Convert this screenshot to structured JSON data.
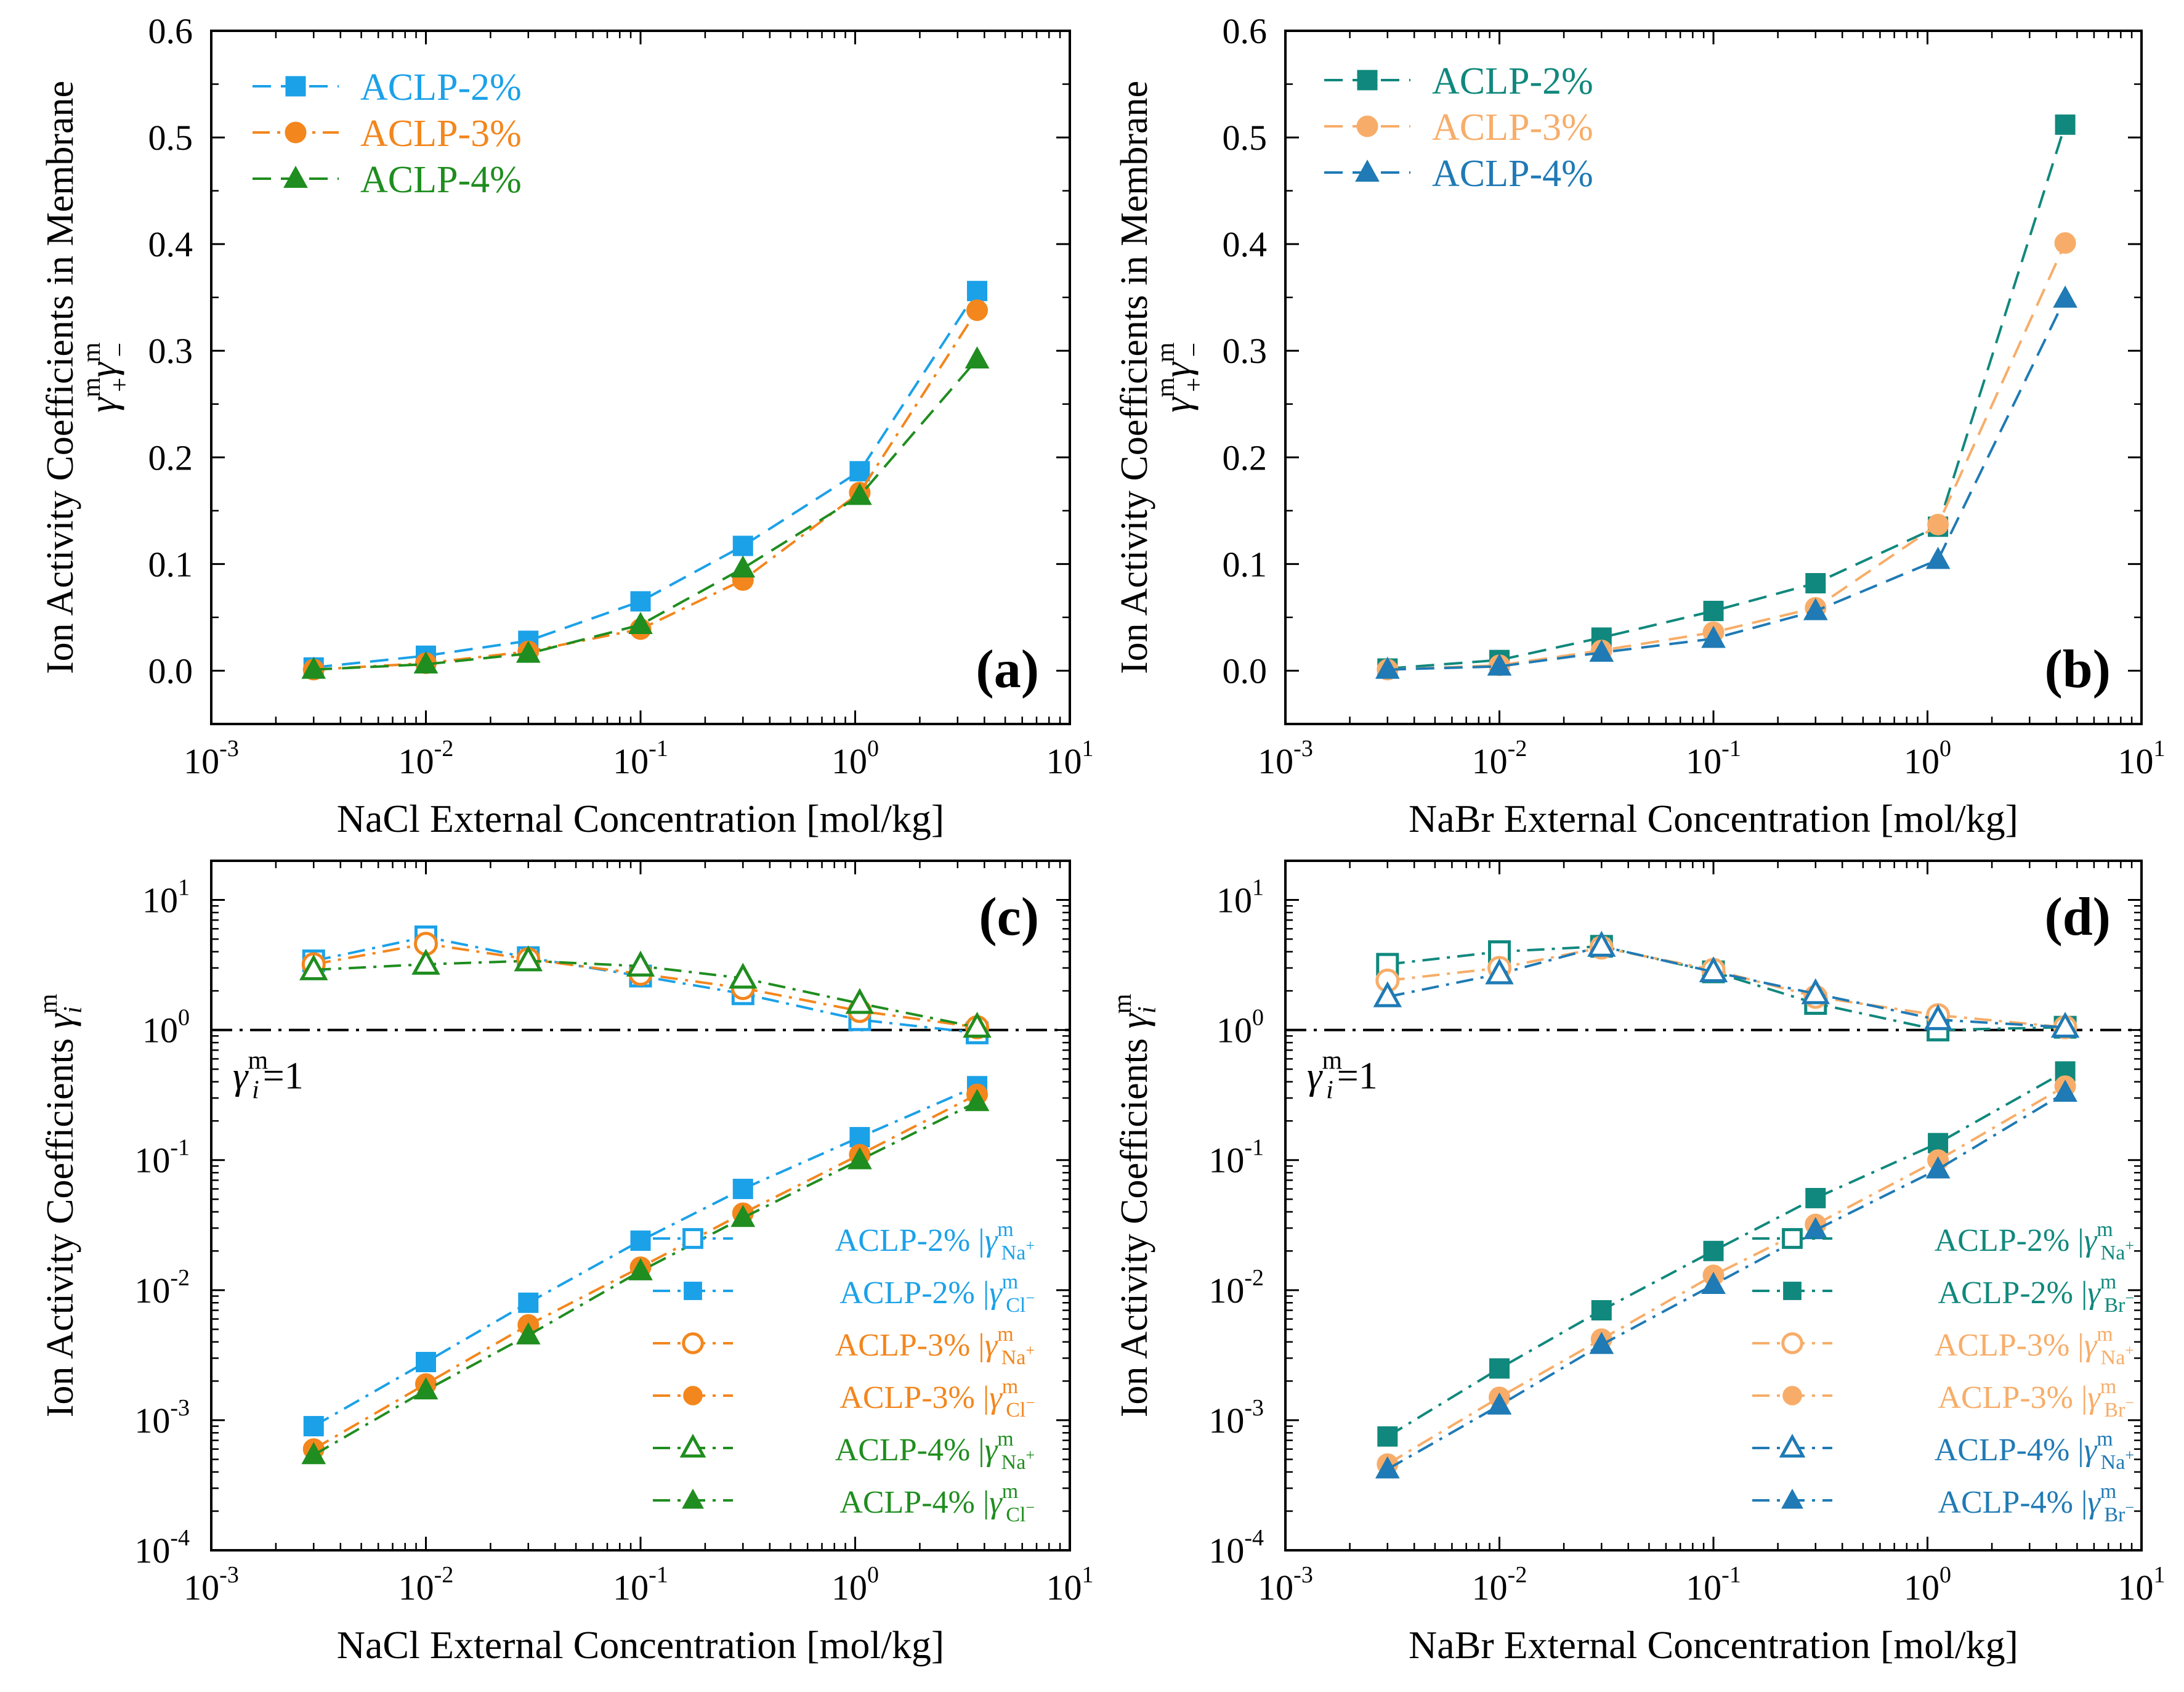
{
  "colors": {
    "sky": "#1ba1e8",
    "orange": "#f3861d",
    "green": "#1f8d1f",
    "teal": "#10887d",
    "peach": "#f7ad69",
    "blue": "#1f7ab5",
    "axis": "#000000"
  },
  "chart_data": [
    {
      "id": "a",
      "type": "line",
      "scale": "semilog-x",
      "panel_label": "(a)",
      "xlabel": "NaCl External  Concentration [mol/kg]",
      "ylabel": "Ion Activity Coefficients in Membrane",
      "ylabel_math": {
        "base": "γ",
        "sup1": "m",
        "sub1": "+",
        "sup2": "m",
        "sub2": "−"
      },
      "xlim": [
        0.001,
        10
      ],
      "ylim": [
        -0.05,
        0.6
      ],
      "xticks": [
        {
          "base": "10",
          "exp": "-3"
        },
        {
          "base": "10",
          "exp": "-2"
        },
        {
          "base": "10",
          "exp": "-1"
        },
        {
          "base": "10",
          "exp": "0"
        },
        {
          "base": "10",
          "exp": "1"
        }
      ],
      "yticks": [
        "0.0",
        "0.1",
        "0.2",
        "0.3",
        "0.4",
        "0.5",
        "0.6"
      ],
      "ytick_values": [
        0,
        0.1,
        0.2,
        0.3,
        0.4,
        0.5,
        0.6
      ],
      "legend_position": "top-left",
      "series": [
        {
          "name": "ACLP-2%",
          "color": "sky",
          "marker": "square",
          "dash": "dashed",
          "x": [
            0.003,
            0.01,
            0.03,
            0.1,
            0.3,
            1.05,
            3.7
          ],
          "y": [
            0.003,
            0.014,
            0.028,
            0.065,
            0.117,
            0.187,
            0.356
          ]
        },
        {
          "name": "ACLP-3%",
          "color": "orange",
          "marker": "circle",
          "dash": "dashdot",
          "x": [
            0.003,
            0.01,
            0.03,
            0.1,
            0.3,
            1.05,
            3.7
          ],
          "y": [
            0.001,
            0.007,
            0.018,
            0.039,
            0.085,
            0.167,
            0.338
          ]
        },
        {
          "name": "ACLP-4%",
          "color": "green",
          "marker": "triangle",
          "dash": "dashed",
          "x": [
            0.003,
            0.01,
            0.03,
            0.1,
            0.3,
            1.05,
            3.7
          ],
          "y": [
            0.001,
            0.006,
            0.016,
            0.043,
            0.096,
            0.164,
            0.292
          ]
        }
      ]
    },
    {
      "id": "b",
      "type": "line",
      "scale": "semilog-x",
      "panel_label": "(b)",
      "xlabel": "NaBr External  Concentration [mol/kg]",
      "ylabel": "Ion Activity Coefficients in Membrane",
      "ylabel_math": {
        "base": "γ",
        "sup1": "m",
        "sub1": "+",
        "sup2": "m",
        "sub2": "−"
      },
      "xlim": [
        0.001,
        10
      ],
      "ylim": [
        -0.05,
        0.6
      ],
      "xticks": [
        {
          "base": "10",
          "exp": "-3"
        },
        {
          "base": "10",
          "exp": "-2"
        },
        {
          "base": "10",
          "exp": "-1"
        },
        {
          "base": "10",
          "exp": "0"
        },
        {
          "base": "10",
          "exp": "1"
        }
      ],
      "yticks": [
        "0.0",
        "0.1",
        "0.2",
        "0.3",
        "0.4",
        "0.5",
        "0.6"
      ],
      "ytick_values": [
        0,
        0.1,
        0.2,
        0.3,
        0.4,
        0.5,
        0.6
      ],
      "legend_position": "top-left",
      "series": [
        {
          "name": "ACLP-2%",
          "color": "teal",
          "marker": "square",
          "dash": "dashed",
          "x": [
            0.003,
            0.01,
            0.03,
            0.1,
            0.3,
            1.12,
            4.4
          ],
          "y": [
            0.002,
            0.01,
            0.031,
            0.056,
            0.082,
            0.135,
            0.512
          ]
        },
        {
          "name": "ACLP-3%",
          "color": "peach",
          "marker": "circle",
          "dash": "dashed",
          "x": [
            0.003,
            0.01,
            0.03,
            0.1,
            0.3,
            1.12,
            4.4
          ],
          "y": [
            0.001,
            0.005,
            0.019,
            0.036,
            0.059,
            0.137,
            0.401
          ]
        },
        {
          "name": "ACLP-4%",
          "color": "blue",
          "marker": "triangle",
          "dash": "dashed",
          "x": [
            0.003,
            0.01,
            0.03,
            0.1,
            0.3,
            1.12,
            4.4
          ],
          "y": [
            0.001,
            0.004,
            0.017,
            0.03,
            0.056,
            0.104,
            0.349
          ]
        }
      ]
    },
    {
      "id": "c",
      "type": "line",
      "scale": "log-log",
      "panel_label": "(c)",
      "xlabel": "NaCl External  Concentration [mol/kg]",
      "ylabel": "Ion Activity Coefficients",
      "ylabel_math": {
        "base": "γ",
        "sub": "i",
        "sup": "m"
      },
      "xlim": [
        0.001,
        10
      ],
      "ylim": [
        0.0001,
        20
      ],
      "xticks": [
        {
          "base": "10",
          "exp": "-3"
        },
        {
          "base": "10",
          "exp": "-2"
        },
        {
          "base": "10",
          "exp": "-1"
        },
        {
          "base": "10",
          "exp": "0"
        },
        {
          "base": "10",
          "exp": "1"
        }
      ],
      "yticks": [
        {
          "base": "10",
          "exp": "-4"
        },
        {
          "base": "10",
          "exp": "-3"
        },
        {
          "base": "10",
          "exp": "-2"
        },
        {
          "base": "10",
          "exp": "-1"
        },
        {
          "base": "10",
          "exp": "0"
        },
        {
          "base": "10",
          "exp": "1"
        }
      ],
      "ytick_values": [
        0.0001,
        0.001,
        0.01,
        0.1,
        1,
        10
      ],
      "reference_line": {
        "y": 1,
        "label_base": "γ",
        "label_sub": "i",
        "label_sup": "m",
        "label_rest": "=1"
      },
      "legend_position": "bottom-right",
      "series": [
        {
          "name": "ACLP-2%",
          "ion": "Na",
          "ion_charge": "+",
          "color": "sky",
          "marker": "square-open",
          "dash": "dashdot",
          "x": [
            0.003,
            0.01,
            0.03,
            0.1,
            0.3,
            1.05,
            3.7
          ],
          "y": [
            3.4,
            5.2,
            3.6,
            2.6,
            1.9,
            1.2,
            0.95
          ]
        },
        {
          "name": "ACLP-2%",
          "ion": "Cl",
          "ion_charge": "−",
          "color": "sky",
          "marker": "square",
          "dash": "dashdot",
          "x": [
            0.003,
            0.01,
            0.03,
            0.1,
            0.3,
            1.05,
            3.7
          ],
          "y": [
            0.0009,
            0.0028,
            0.008,
            0.024,
            0.06,
            0.15,
            0.37
          ]
        },
        {
          "name": "ACLP-3%",
          "ion": "Na",
          "ion_charge": "+",
          "color": "orange",
          "marker": "circle-open",
          "dash": "dashdot",
          "x": [
            0.003,
            0.01,
            0.03,
            0.1,
            0.3,
            1.05,
            3.7
          ],
          "y": [
            3.2,
            4.6,
            3.5,
            2.7,
            2.1,
            1.4,
            1.05
          ]
        },
        {
          "name": "ACLP-3%",
          "ion": "Cl",
          "ion_charge": "−",
          "color": "orange",
          "marker": "circle",
          "dash": "dashdot",
          "x": [
            0.003,
            0.01,
            0.03,
            0.1,
            0.3,
            1.05,
            3.7
          ],
          "y": [
            0.0006,
            0.0019,
            0.0054,
            0.015,
            0.039,
            0.11,
            0.32
          ]
        },
        {
          "name": "ACLP-4%",
          "ion": "Na",
          "ion_charge": "+",
          "color": "green",
          "marker": "triangle-open",
          "dash": "dashdot",
          "x": [
            0.003,
            0.01,
            0.03,
            0.1,
            0.3,
            1.05,
            3.7
          ],
          "y": [
            2.9,
            3.2,
            3.4,
            3.1,
            2.5,
            1.6,
            1.05
          ]
        },
        {
          "name": "ACLP-4%",
          "ion": "Cl",
          "ion_charge": "−",
          "color": "green",
          "marker": "triangle",
          "dash": "dashdot",
          "x": [
            0.003,
            0.01,
            0.03,
            0.1,
            0.3,
            1.05,
            3.7
          ],
          "y": [
            0.00054,
            0.0017,
            0.0045,
            0.014,
            0.036,
            0.1,
            0.28
          ]
        }
      ]
    },
    {
      "id": "d",
      "type": "line",
      "scale": "log-log",
      "panel_label": "(d)",
      "xlabel": "NaBr External  Concentration [mol/kg]",
      "ylabel": "Ion Activity Coefficients",
      "ylabel_math": {
        "base": "γ",
        "sub": "i",
        "sup": "m"
      },
      "xlim": [
        0.001,
        10
      ],
      "ylim": [
        0.0001,
        20
      ],
      "xticks": [
        {
          "base": "10",
          "exp": "-3"
        },
        {
          "base": "10",
          "exp": "-2"
        },
        {
          "base": "10",
          "exp": "-1"
        },
        {
          "base": "10",
          "exp": "0"
        },
        {
          "base": "10",
          "exp": "1"
        }
      ],
      "yticks": [
        {
          "base": "10",
          "exp": "-4"
        },
        {
          "base": "10",
          "exp": "-3"
        },
        {
          "base": "10",
          "exp": "-2"
        },
        {
          "base": "10",
          "exp": "-1"
        },
        {
          "base": "10",
          "exp": "0"
        },
        {
          "base": "10",
          "exp": "1"
        }
      ],
      "ytick_values": [
        0.0001,
        0.001,
        0.01,
        0.1,
        1,
        10
      ],
      "reference_line": {
        "y": 1,
        "label_base": "γ",
        "label_sub": "i",
        "label_sup": "m",
        "label_rest": "=1"
      },
      "legend_position": "bottom-right",
      "series": [
        {
          "name": "ACLP-2%",
          "ion": "Na",
          "ion_charge": "+",
          "color": "teal",
          "marker": "square-open",
          "dash": "dashdot",
          "x": [
            0.003,
            0.01,
            0.03,
            0.1,
            0.3,
            1.12,
            4.4
          ],
          "y": [
            3.2,
            4.0,
            4.4,
            2.8,
            1.6,
            1.0,
            1.05
          ]
        },
        {
          "name": "ACLP-2%",
          "ion": "Br",
          "ion_charge": "−",
          "color": "teal",
          "marker": "square",
          "dash": "dashdot",
          "x": [
            0.003,
            0.01,
            0.03,
            0.1,
            0.3,
            1.12,
            4.4
          ],
          "y": [
            0.00075,
            0.0025,
            0.007,
            0.02,
            0.051,
            0.135,
            0.48
          ]
        },
        {
          "name": "ACLP-3%",
          "ion": "Na",
          "ion_charge": "+",
          "color": "peach",
          "marker": "circle-open",
          "dash": "dashdot",
          "x": [
            0.003,
            0.01,
            0.03,
            0.1,
            0.3,
            1.12,
            4.4
          ],
          "y": [
            2.4,
            3.0,
            4.3,
            2.9,
            1.8,
            1.3,
            1.05
          ]
        },
        {
          "name": "ACLP-3%",
          "ion": "Br",
          "ion_charge": "−",
          "color": "peach",
          "marker": "circle",
          "dash": "dashdot",
          "x": [
            0.003,
            0.01,
            0.03,
            0.1,
            0.3,
            1.12,
            4.4
          ],
          "y": [
            0.00046,
            0.0015,
            0.0042,
            0.013,
            0.032,
            0.1,
            0.37
          ]
        },
        {
          "name": "ACLP-4%",
          "ion": "Na",
          "ion_charge": "+",
          "color": "blue",
          "marker": "triangle-open",
          "dash": "dashdot",
          "x": [
            0.003,
            0.01,
            0.03,
            0.1,
            0.3,
            1.12,
            4.4
          ],
          "y": [
            1.8,
            2.7,
            4.4,
            2.8,
            1.9,
            1.2,
            1.05
          ]
        },
        {
          "name": "ACLP-4%",
          "ion": "Br",
          "ion_charge": "−",
          "color": "blue",
          "marker": "triangle",
          "dash": "dashdot",
          "x": [
            0.003,
            0.01,
            0.03,
            0.1,
            0.3,
            1.12,
            4.4
          ],
          "y": [
            0.00042,
            0.0013,
            0.0038,
            0.011,
            0.029,
            0.085,
            0.33
          ]
        }
      ]
    }
  ]
}
